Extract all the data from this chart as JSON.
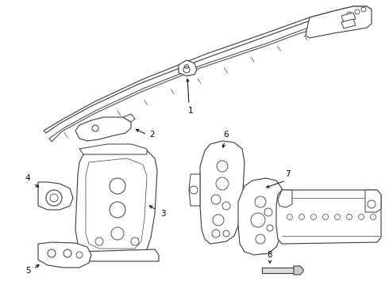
{
  "background_color": "#ffffff",
  "line_color": "#3a3a3a",
  "line_width": 0.8,
  "label_color": "#000000",
  "label_fontsize": 7.5,
  "fig_width": 4.9,
  "fig_height": 3.6,
  "dpi": 100
}
